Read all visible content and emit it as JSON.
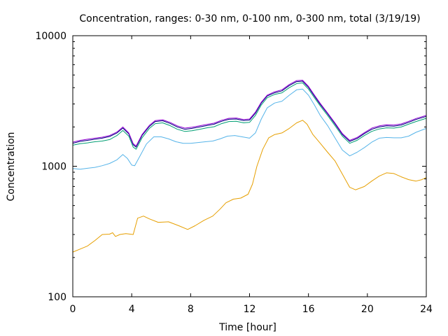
{
  "chart_data": {
    "type": "line",
    "title": "Concentration, ranges: 0-30 nm, 0-100 nm, 0-300 nm, total (3/19/19)",
    "xlabel": "Time [hour]",
    "ylabel": "Concentration",
    "xlim": [
      0,
      24
    ],
    "ylim": [
      100,
      10000
    ],
    "yscale": "log",
    "grid": false,
    "legend": "none",
    "x_ticks": [
      0,
      4,
      8,
      12,
      16,
      20,
      24
    ],
    "x_tick_labels": [
      "0",
      "4",
      "8",
      "12",
      "16",
      "20",
      "24"
    ],
    "y_ticks": [
      100,
      1000,
      10000
    ],
    "y_tick_labels": [
      "100",
      "1000",
      "10000"
    ],
    "series": [
      {
        "color": "#e69f00",
        "points": [
          [
            0,
            220
          ],
          [
            0.5,
            232
          ],
          [
            1,
            245
          ],
          [
            1.5,
            270
          ],
          [
            2,
            300
          ],
          [
            2.5,
            302
          ],
          [
            2.7,
            310
          ],
          [
            2.9,
            290
          ],
          [
            3.2,
            300
          ],
          [
            3.6,
            305
          ],
          [
            4.1,
            300
          ],
          [
            4.4,
            400
          ],
          [
            4.8,
            415
          ],
          [
            5.2,
            395
          ],
          [
            5.8,
            372
          ],
          [
            6.5,
            375
          ],
          [
            7.2,
            350
          ],
          [
            7.8,
            328
          ],
          [
            8.3,
            350
          ],
          [
            8.9,
            385
          ],
          [
            9.5,
            415
          ],
          [
            10,
            470
          ],
          [
            10.4,
            525
          ],
          [
            10.9,
            560
          ],
          [
            11.4,
            570
          ],
          [
            11.9,
            610
          ],
          [
            12.2,
            730
          ],
          [
            12.5,
            1000
          ],
          [
            12.9,
            1350
          ],
          [
            13.3,
            1650
          ],
          [
            13.7,
            1750
          ],
          [
            14.2,
            1800
          ],
          [
            14.7,
            1950
          ],
          [
            15.2,
            2150
          ],
          [
            15.6,
            2250
          ],
          [
            15.9,
            2100
          ],
          [
            16.3,
            1750
          ],
          [
            16.8,
            1500
          ],
          [
            17.3,
            1280
          ],
          [
            17.8,
            1100
          ],
          [
            18.3,
            870
          ],
          [
            18.8,
            690
          ],
          [
            19.2,
            660
          ],
          [
            19.8,
            700
          ],
          [
            20.3,
            770
          ],
          [
            20.8,
            840
          ],
          [
            21.3,
            890
          ],
          [
            21.8,
            880
          ],
          [
            22.3,
            830
          ],
          [
            22.8,
            790
          ],
          [
            23.3,
            770
          ],
          [
            23.7,
            790
          ],
          [
            24,
            820
          ]
        ]
      },
      {
        "color": "#56b4e9",
        "points": [
          [
            0,
            960
          ],
          [
            0.5,
            950
          ],
          [
            1,
            965
          ],
          [
            1.5,
            980
          ],
          [
            2,
            1010
          ],
          [
            2.5,
            1050
          ],
          [
            3,
            1120
          ],
          [
            3.4,
            1230
          ],
          [
            3.7,
            1150
          ],
          [
            4,
            1020
          ],
          [
            4.2,
            1010
          ],
          [
            4.6,
            1220
          ],
          [
            5,
            1480
          ],
          [
            5.5,
            1680
          ],
          [
            6,
            1680
          ],
          [
            6.5,
            1620
          ],
          [
            7,
            1540
          ],
          [
            7.5,
            1500
          ],
          [
            8,
            1500
          ],
          [
            8.5,
            1520
          ],
          [
            9,
            1540
          ],
          [
            9.5,
            1560
          ],
          [
            10,
            1620
          ],
          [
            10.5,
            1700
          ],
          [
            11,
            1720
          ],
          [
            11.5,
            1680
          ],
          [
            12,
            1640
          ],
          [
            12.4,
            1800
          ],
          [
            12.8,
            2300
          ],
          [
            13.2,
            2800
          ],
          [
            13.7,
            3050
          ],
          [
            14.2,
            3150
          ],
          [
            14.7,
            3500
          ],
          [
            15.2,
            3850
          ],
          [
            15.6,
            3900
          ],
          [
            16,
            3500
          ],
          [
            16.4,
            2950
          ],
          [
            16.8,
            2450
          ],
          [
            17.3,
            2050
          ],
          [
            17.8,
            1650
          ],
          [
            18.3,
            1330
          ],
          [
            18.8,
            1200
          ],
          [
            19.3,
            1280
          ],
          [
            19.8,
            1390
          ],
          [
            20.3,
            1530
          ],
          [
            20.8,
            1640
          ],
          [
            21.3,
            1660
          ],
          [
            21.8,
            1650
          ],
          [
            22.3,
            1650
          ],
          [
            22.8,
            1700
          ],
          [
            23.3,
            1820
          ],
          [
            24,
            1950
          ]
        ]
      },
      {
        "color": "#009e73",
        "points": [
          [
            0,
            1450
          ],
          [
            0.5,
            1490
          ],
          [
            1,
            1510
          ],
          [
            1.5,
            1540
          ],
          [
            2,
            1560
          ],
          [
            2.5,
            1600
          ],
          [
            3,
            1720
          ],
          [
            3.4,
            1880
          ],
          [
            3.8,
            1700
          ],
          [
            4.1,
            1400
          ],
          [
            4.3,
            1350
          ],
          [
            4.7,
            1650
          ],
          [
            5.2,
            1950
          ],
          [
            5.6,
            2120
          ],
          [
            6.1,
            2150
          ],
          [
            6.6,
            2050
          ],
          [
            7.1,
            1920
          ],
          [
            7.6,
            1850
          ],
          [
            8.1,
            1870
          ],
          [
            8.6,
            1920
          ],
          [
            9.1,
            1970
          ],
          [
            9.6,
            2010
          ],
          [
            10.1,
            2120
          ],
          [
            10.6,
            2200
          ],
          [
            11.1,
            2210
          ],
          [
            11.6,
            2150
          ],
          [
            12,
            2170
          ],
          [
            12.4,
            2450
          ],
          [
            12.8,
            2950
          ],
          [
            13.2,
            3350
          ],
          [
            13.7,
            3550
          ],
          [
            14.2,
            3650
          ],
          [
            14.7,
            4000
          ],
          [
            15.2,
            4300
          ],
          [
            15.6,
            4350
          ],
          [
            16,
            3900
          ],
          [
            16.4,
            3350
          ],
          [
            16.8,
            2900
          ],
          [
            17.3,
            2450
          ],
          [
            17.8,
            2050
          ],
          [
            18.3,
            1700
          ],
          [
            18.8,
            1500
          ],
          [
            19.3,
            1580
          ],
          [
            19.8,
            1720
          ],
          [
            20.3,
            1850
          ],
          [
            20.8,
            1930
          ],
          [
            21.3,
            1970
          ],
          [
            21.8,
            1960
          ],
          [
            22.3,
            2000
          ],
          [
            22.8,
            2100
          ],
          [
            23.3,
            2200
          ],
          [
            24,
            2330
          ]
        ]
      },
      {
        "color": "#000080",
        "points": [
          [
            0,
            1500
          ],
          [
            0.5,
            1550
          ],
          [
            1,
            1580
          ],
          [
            1.5,
            1610
          ],
          [
            2,
            1640
          ],
          [
            2.5,
            1690
          ],
          [
            3,
            1800
          ],
          [
            3.4,
            1960
          ],
          [
            3.8,
            1770
          ],
          [
            4.1,
            1460
          ],
          [
            4.3,
            1400
          ],
          [
            4.7,
            1720
          ],
          [
            5.2,
            2020
          ],
          [
            5.6,
            2200
          ],
          [
            6.1,
            2230
          ],
          [
            6.6,
            2130
          ],
          [
            7.1,
            2000
          ],
          [
            7.6,
            1920
          ],
          [
            8.1,
            1950
          ],
          [
            8.6,
            2000
          ],
          [
            9.1,
            2050
          ],
          [
            9.6,
            2100
          ],
          [
            10.1,
            2210
          ],
          [
            10.6,
            2290
          ],
          [
            11.1,
            2300
          ],
          [
            11.6,
            2240
          ],
          [
            12,
            2260
          ],
          [
            12.4,
            2550
          ],
          [
            12.8,
            3050
          ],
          [
            13.2,
            3450
          ],
          [
            13.7,
            3650
          ],
          [
            14.2,
            3780
          ],
          [
            14.7,
            4150
          ],
          [
            15.2,
            4450
          ],
          [
            15.6,
            4480
          ],
          [
            16,
            4020
          ],
          [
            16.4,
            3450
          ],
          [
            16.8,
            2980
          ],
          [
            17.3,
            2520
          ],
          [
            17.8,
            2110
          ],
          [
            18.3,
            1750
          ],
          [
            18.8,
            1550
          ],
          [
            19.3,
            1630
          ],
          [
            19.8,
            1780
          ],
          [
            20.3,
            1920
          ],
          [
            20.8,
            2000
          ],
          [
            21.3,
            2040
          ],
          [
            21.8,
            2030
          ],
          [
            22.3,
            2070
          ],
          [
            22.8,
            2170
          ],
          [
            23.3,
            2280
          ],
          [
            24,
            2410
          ]
        ]
      },
      {
        "color": "#9400d3",
        "points": [
          [
            0,
            1530
          ],
          [
            0.5,
            1580
          ],
          [
            1,
            1610
          ],
          [
            1.5,
            1640
          ],
          [
            2,
            1670
          ],
          [
            2.5,
            1720
          ],
          [
            3,
            1830
          ],
          [
            3.4,
            2000
          ],
          [
            3.8,
            1800
          ],
          [
            4.1,
            1490
          ],
          [
            4.3,
            1430
          ],
          [
            4.7,
            1750
          ],
          [
            5.2,
            2060
          ],
          [
            5.6,
            2240
          ],
          [
            6.1,
            2270
          ],
          [
            6.6,
            2170
          ],
          [
            7.1,
            2040
          ],
          [
            7.6,
            1960
          ],
          [
            8.1,
            1990
          ],
          [
            8.6,
            2040
          ],
          [
            9.1,
            2090
          ],
          [
            9.6,
            2140
          ],
          [
            10.1,
            2250
          ],
          [
            10.6,
            2330
          ],
          [
            11.1,
            2340
          ],
          [
            11.6,
            2280
          ],
          [
            12,
            2300
          ],
          [
            12.4,
            2600
          ],
          [
            12.8,
            3100
          ],
          [
            13.2,
            3500
          ],
          [
            13.7,
            3720
          ],
          [
            14.2,
            3850
          ],
          [
            14.7,
            4230
          ],
          [
            15.2,
            4530
          ],
          [
            15.6,
            4560
          ],
          [
            16,
            4090
          ],
          [
            16.4,
            3510
          ],
          [
            16.8,
            3030
          ],
          [
            17.3,
            2560
          ],
          [
            17.8,
            2150
          ],
          [
            18.3,
            1780
          ],
          [
            18.8,
            1580
          ],
          [
            19.3,
            1660
          ],
          [
            19.8,
            1810
          ],
          [
            20.3,
            1960
          ],
          [
            20.8,
            2040
          ],
          [
            21.3,
            2080
          ],
          [
            21.8,
            2070
          ],
          [
            22.3,
            2110
          ],
          [
            22.8,
            2210
          ],
          [
            23.3,
            2320
          ],
          [
            24,
            2450
          ]
        ]
      }
    ]
  }
}
